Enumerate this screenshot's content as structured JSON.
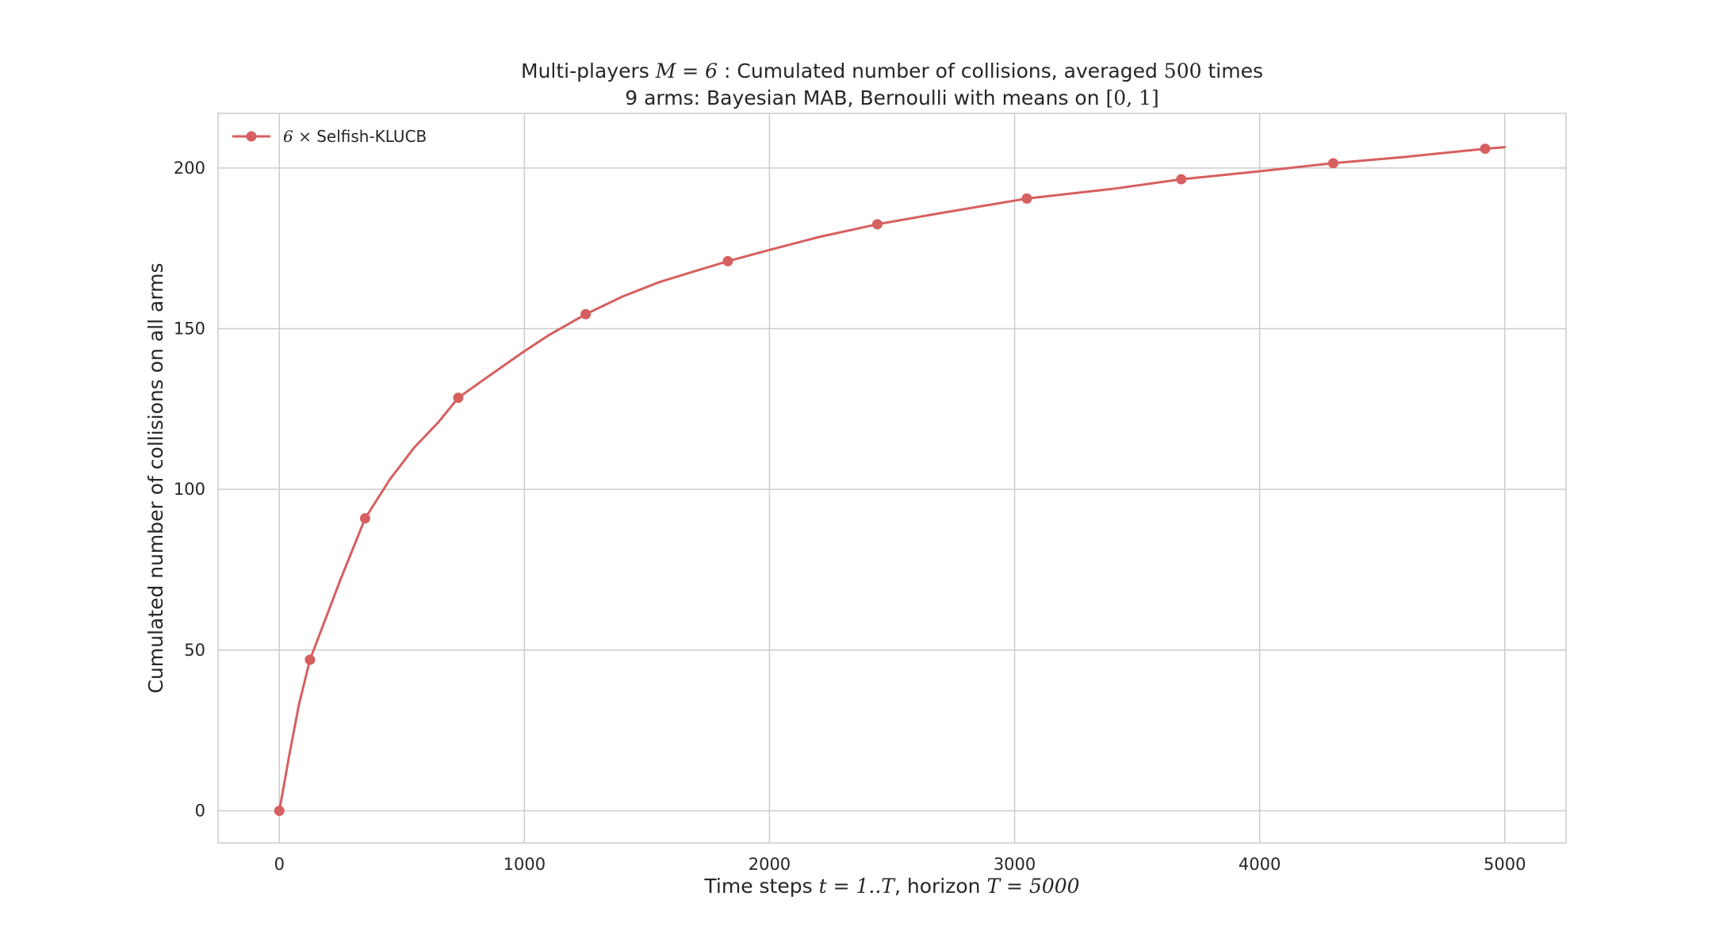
{
  "chart_data": {
    "type": "line",
    "title_lines": [
      [
        {
          "text": "Multi-players ",
          "style": "plain"
        },
        {
          "text": "M = 6",
          "style": "math"
        },
        {
          "text": " : Cumulated number of collisions, averaged ",
          "style": "plain"
        },
        {
          "text": "500",
          "style": "mathup"
        },
        {
          "text": " times",
          "style": "plain"
        }
      ],
      [
        {
          "text": "9 arms: Bayesian MAB, Bernoulli with means on ",
          "style": "plain"
        },
        {
          "text": "[0, 1]",
          "style": "mathup"
        }
      ]
    ],
    "xlabel_parts": [
      {
        "text": "Time steps ",
        "style": "plain"
      },
      {
        "text": "t = 1..T",
        "style": "math"
      },
      {
        "text": ", horizon ",
        "style": "plain"
      },
      {
        "text": "T = 5000",
        "style": "math"
      }
    ],
    "ylabel": "Cumulated number of collisions on all arms",
    "xlim": [
      -250,
      5250
    ],
    "ylim": [
      -10,
      217
    ],
    "xticks": [
      0,
      1000,
      2000,
      3000,
      4000,
      5000
    ],
    "yticks": [
      0,
      50,
      100,
      150,
      200
    ],
    "grid": true,
    "legend_position": "top-left",
    "series": [
      {
        "name_math": "6 ×",
        "name": "Selfish-KLUCB",
        "color": "#d65f5f",
        "curve": [
          [
            0,
            0
          ],
          [
            40,
            17
          ],
          [
            80,
            33
          ],
          [
            125,
            47
          ],
          [
            180,
            58
          ],
          [
            250,
            72
          ],
          [
            350,
            91
          ],
          [
            450,
            103
          ],
          [
            550,
            113
          ],
          [
            650,
            121
          ],
          [
            730,
            128.5
          ],
          [
            850,
            135
          ],
          [
            1000,
            143
          ],
          [
            1100,
            148
          ],
          [
            1250,
            154.5
          ],
          [
            1400,
            160
          ],
          [
            1550,
            164.5
          ],
          [
            1700,
            168
          ],
          [
            1830,
            171
          ],
          [
            2000,
            174.5
          ],
          [
            2200,
            178.5
          ],
          [
            2440,
            182.5
          ],
          [
            2700,
            186
          ],
          [
            3050,
            190.5
          ],
          [
            3400,
            193.5
          ],
          [
            3680,
            196.5
          ],
          [
            4000,
            199
          ],
          [
            4300,
            201.5
          ],
          [
            4600,
            203.5
          ],
          [
            4920,
            206
          ],
          [
            5000,
            206.5
          ]
        ],
        "markers": [
          [
            0,
            0
          ],
          [
            125,
            47
          ],
          [
            350,
            91
          ],
          [
            730,
            128.5
          ],
          [
            1250,
            154.5
          ],
          [
            1830,
            171
          ],
          [
            2440,
            182.5
          ],
          [
            3050,
            190.5
          ],
          [
            3680,
            196.5
          ],
          [
            4300,
            201.5
          ],
          [
            4920,
            206
          ]
        ]
      }
    ]
  }
}
